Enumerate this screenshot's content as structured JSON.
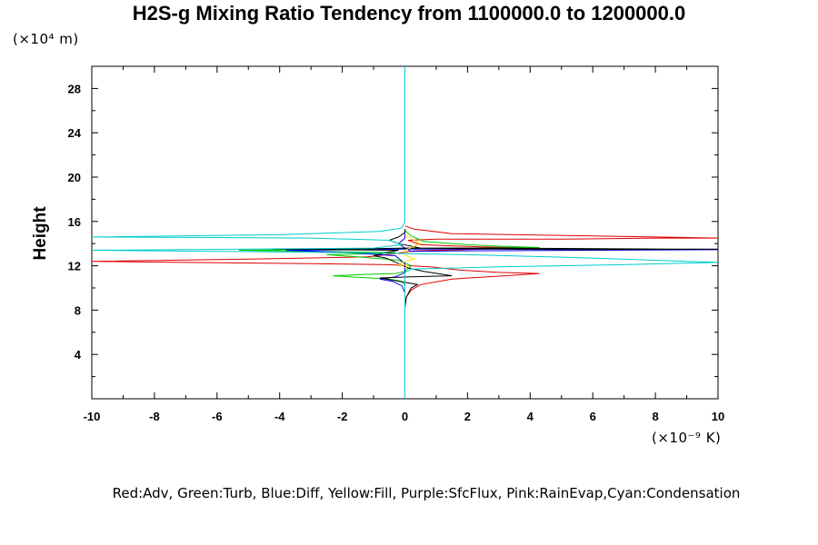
{
  "chart_data": {
    "type": "line",
    "title": "H2S-g Mixing Ratio Tendency from 1100000.0 to 1200000.0",
    "ylabel": "Height",
    "y_units": "(×10⁴ m)",
    "x_units": "(×10⁻⁹ K)",
    "xlim": [
      -10,
      10
    ],
    "ylim": [
      0,
      30
    ],
    "x_ticks": [
      -10,
      -8,
      -6,
      -4,
      -2,
      0,
      2,
      4,
      6,
      8,
      10
    ],
    "y_ticks": [
      4,
      8,
      12,
      16,
      20,
      24,
      28
    ],
    "legend_text": "Red:Adv, Green:Turb, Blue:Diff, Yellow:Fill, Purple:SfcFlux, Pink:RainEvap,Cyan:Condensation",
    "legend_position": "bottom",
    "grid": false,
    "series": [
      {
        "name": "Adv",
        "color": "#e00000",
        "points": [
          [
            0,
            8.6
          ],
          [
            0.05,
            9.2
          ],
          [
            0.2,
            9.8
          ],
          [
            0.5,
            10.3
          ],
          [
            1.5,
            10.8
          ],
          [
            3.2,
            11.1
          ],
          [
            4.3,
            11.3
          ],
          [
            3.0,
            11.4
          ],
          [
            1.8,
            11.6
          ],
          [
            0.8,
            11.9
          ],
          [
            -0.5,
            12.1
          ],
          [
            -3,
            12.2
          ],
          [
            -7,
            12.3
          ],
          [
            -10,
            12.4
          ],
          [
            -5,
            12.6
          ],
          [
            -1.2,
            12.8
          ],
          [
            -0.3,
            13.1
          ],
          [
            0.3,
            13.35
          ],
          [
            2.5,
            13.5
          ],
          [
            4.3,
            13.6
          ],
          [
            2.5,
            13.7
          ],
          [
            0.5,
            13.9
          ],
          [
            0.1,
            14.3
          ],
          [
            1,
            14.4
          ],
          [
            5,
            14.4
          ],
          [
            8,
            14.5
          ],
          [
            10,
            14.5
          ],
          [
            6,
            14.7
          ],
          [
            1.5,
            14.9
          ],
          [
            0.3,
            15.3
          ],
          [
            0,
            15.6
          ]
        ]
      },
      {
        "name": "Turb",
        "color": "#00cc00",
        "points": [
          [
            0,
            10.2
          ],
          [
            -0.1,
            10.6
          ],
          [
            -0.5,
            10.8
          ],
          [
            -2.3,
            11.1
          ],
          [
            -1.5,
            11.2
          ],
          [
            -0.3,
            11.3
          ],
          [
            0,
            11.5
          ],
          [
            0.2,
            12.0
          ],
          [
            -0.2,
            12.5
          ],
          [
            -1.5,
            12.8
          ],
          [
            -2.5,
            13.0
          ],
          [
            -1.0,
            13.1
          ],
          [
            -0.3,
            13.2
          ],
          [
            -3,
            13.3
          ],
          [
            -5.3,
            13.4
          ],
          [
            -2,
            13.5
          ],
          [
            0,
            13.55
          ],
          [
            2,
            13.6
          ],
          [
            4.3,
            13.65
          ],
          [
            2.7,
            13.8
          ],
          [
            1.5,
            14.0
          ],
          [
            0.6,
            14.2
          ],
          [
            0.2,
            14.7
          ],
          [
            0,
            15.2
          ]
        ]
      },
      {
        "name": "Diff",
        "color": "#0000ee",
        "points": [
          [
            0,
            9.6
          ],
          [
            -0.1,
            10.2
          ],
          [
            -0.4,
            10.6
          ],
          [
            -0.8,
            10.8
          ],
          [
            -0.3,
            11.0
          ],
          [
            0,
            11.4
          ],
          [
            0,
            12.2
          ],
          [
            -0.3,
            12.9
          ],
          [
            -1.8,
            13.2
          ],
          [
            -3.8,
            13.4
          ],
          [
            -1.5,
            13.45
          ],
          [
            0,
            13.5
          ],
          [
            3,
            13.5
          ],
          [
            8,
            13.45
          ],
          [
            10,
            13.45
          ],
          [
            6,
            13.4
          ],
          [
            2,
            13.35
          ],
          [
            0.2,
            13.3
          ],
          [
            0,
            13.6
          ],
          [
            -0.2,
            14.0
          ],
          [
            0,
            14.5
          ],
          [
            0,
            15.3
          ]
        ]
      },
      {
        "name": "Black",
        "color": "#000000",
        "points": [
          [
            0,
            8.2
          ],
          [
            0.05,
            9.2
          ],
          [
            0.2,
            10.0
          ],
          [
            0.4,
            10.3
          ],
          [
            -0.8,
            10.9
          ],
          [
            0.2,
            11.0
          ],
          [
            1.5,
            11.1
          ],
          [
            0.6,
            11.5
          ],
          [
            0.1,
            11.8
          ],
          [
            -0.2,
            12.2
          ],
          [
            -0.6,
            12.7
          ],
          [
            -1,
            12.9
          ],
          [
            -0.6,
            13.2
          ],
          [
            -0.2,
            13.4
          ],
          [
            -2,
            13.45
          ],
          [
            -4.2,
            13.5
          ],
          [
            -1,
            13.55
          ],
          [
            0,
            13.6
          ],
          [
            3,
            13.6
          ],
          [
            8.5,
            13.5
          ],
          [
            10,
            13.5
          ],
          [
            5,
            13.45
          ],
          [
            0.5,
            13.6
          ],
          [
            -0.2,
            14.0
          ],
          [
            -0.5,
            14.3
          ],
          [
            -0.2,
            14.6
          ],
          [
            0,
            15.0
          ],
          [
            0,
            15.3
          ]
        ]
      },
      {
        "name": "Fill",
        "color": "#ffdd00",
        "points": [
          [
            0,
            11.8
          ],
          [
            0.1,
            12.0
          ],
          [
            -0.2,
            12.1
          ],
          [
            -0.1,
            12.3
          ],
          [
            0.3,
            12.6
          ],
          [
            0,
            13.0
          ],
          [
            0,
            13.4
          ],
          [
            0.5,
            14.0
          ],
          [
            0.3,
            14.3
          ],
          [
            0,
            14.8
          ]
        ]
      },
      {
        "name": "Condensation",
        "color": "#00cccc",
        "points": [
          [
            0,
            0
          ],
          [
            0,
            11.4
          ],
          [
            0.2,
            11.7
          ],
          [
            3,
            11.9
          ],
          [
            7,
            12.1
          ],
          [
            10,
            12.3
          ],
          [
            6,
            12.7
          ],
          [
            2,
            13.0
          ],
          [
            -2,
            13.2
          ],
          [
            -6,
            13.3
          ],
          [
            -10,
            13.4
          ],
          [
            -5,
            13.5
          ],
          [
            -1,
            13.6
          ],
          [
            -0.1,
            13.9
          ],
          [
            -0.5,
            14.3
          ],
          [
            -3,
            14.5
          ],
          [
            -6,
            14.55
          ],
          [
            -10,
            14.6
          ],
          [
            -4,
            14.8
          ],
          [
            -0.8,
            15.1
          ],
          [
            -0.1,
            15.4
          ],
          [
            0,
            16
          ],
          [
            0,
            30
          ]
        ]
      }
    ]
  }
}
